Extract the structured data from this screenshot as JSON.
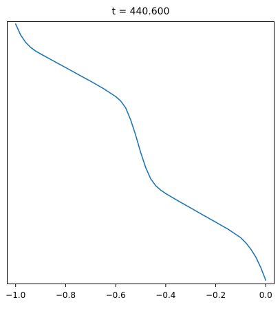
{
  "chart_data": {
    "type": "line",
    "title": "t = 440.600",
    "xlabel": "",
    "ylabel": "",
    "xlim": [
      -1.035,
      0.035
    ],
    "ylim": [
      0,
      1
    ],
    "x_ticks": [
      {
        "value": -1.0,
        "label": "−1.0"
      },
      {
        "value": -0.8,
        "label": "−0.8"
      },
      {
        "value": -0.6,
        "label": "−0.6"
      },
      {
        "value": -0.4,
        "label": "−0.4"
      },
      {
        "value": -0.2,
        "label": "−0.2"
      },
      {
        "value": 0.0,
        "label": "0.0"
      }
    ],
    "y_ticks_visible": false,
    "grid": false,
    "series": [
      {
        "color": "#1f77b4",
        "x": [
          -1.0,
          -0.98,
          -0.96,
          -0.94,
          -0.92,
          -0.9,
          -0.85,
          -0.8,
          -0.75,
          -0.7,
          -0.65,
          -0.6,
          -0.58,
          -0.56,
          -0.54,
          -0.52,
          -0.5,
          -0.48,
          -0.46,
          -0.44,
          -0.42,
          -0.4,
          -0.35,
          -0.3,
          -0.25,
          -0.2,
          -0.15,
          -0.1,
          -0.08,
          -0.06,
          -0.04,
          -0.02,
          0.0
        ],
        "y": [
          0.99,
          0.948,
          0.92,
          0.901,
          0.887,
          0.876,
          0.85,
          0.824,
          0.798,
          0.772,
          0.745,
          0.714,
          0.697,
          0.671,
          0.625,
          0.567,
          0.501,
          0.444,
          0.401,
          0.375,
          0.358,
          0.345,
          0.317,
          0.29,
          0.263,
          0.236,
          0.209,
          0.177,
          0.158,
          0.134,
          0.104,
          0.064,
          0.015
        ]
      }
    ]
  }
}
